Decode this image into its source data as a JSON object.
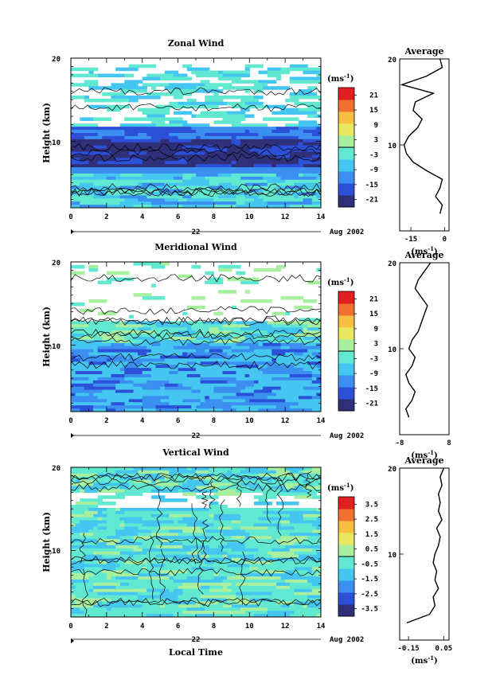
{
  "chart_data": [
    {
      "type": "heatmap",
      "title": "Zonal Wind",
      "xlabel": "",
      "ylabel": "Height (km)",
      "xlim": [
        0,
        14
      ],
      "ylim": [
        2,
        20
      ],
      "xticks": [
        "0",
        "2",
        "4",
        "6",
        "8",
        "10",
        "12",
        "14"
      ],
      "yticks": [
        "10",
        "20"
      ],
      "date_label": "22",
      "month_label": "Aug 2002",
      "colorbar": {
        "unit": "(ms",
        "unit_exp": "-1",
        "unit_close": ")",
        "ticks": [
          "21",
          "15",
          "9",
          "3",
          "-3",
          "-9",
          "-15",
          "-21"
        ],
        "range": [
          -24,
          24
        ]
      },
      "profile": {
        "title": "Average",
        "xlabel": "(ms",
        "xlabel_exp": "-1",
        "xlabel_close": ")",
        "xticks": [
          "-15",
          "0"
        ],
        "yticks": [
          "10",
          "20"
        ],
        "xlim": [
          -20,
          2
        ],
        "heights": [
          2,
          3,
          4,
          5,
          6,
          7,
          8,
          9,
          10,
          11,
          12,
          13,
          14,
          15,
          16,
          17,
          18,
          19,
          20
        ],
        "values": [
          -2,
          -1,
          -4,
          -2,
          -1,
          -8,
          -14,
          -17,
          -18,
          -16,
          -12,
          -10,
          -14,
          -13,
          -5,
          -19,
          -8,
          -1,
          -2
        ]
      }
    },
    {
      "type": "heatmap",
      "title": "Meridional Wind",
      "xlabel": "",
      "ylabel": "Height (km)",
      "xlim": [
        0,
        14
      ],
      "ylim": [
        2,
        20
      ],
      "xticks": [
        "0",
        "2",
        "4",
        "6",
        "8",
        "10",
        "12",
        "14"
      ],
      "yticks": [
        "10",
        "20"
      ],
      "date_label": "22",
      "month_label": "Aug 2002",
      "colorbar": {
        "unit": "(ms",
        "unit_exp": "-1",
        "unit_close": ")",
        "ticks": [
          "21",
          "15",
          "9",
          "3",
          "-3",
          "-9",
          "-15",
          "-21"
        ],
        "range": [
          -24,
          24
        ]
      },
      "profile": {
        "title": "Average",
        "xlabel": "(ms",
        "xlabel_exp": "-1",
        "xlabel_close": ")",
        "xticks": [
          "-8",
          "8"
        ],
        "yticks": [
          "10",
          "20"
        ],
        "xlim": [
          -8,
          8
        ],
        "heights": [
          2,
          3,
          4,
          5,
          6,
          7,
          8,
          9,
          10,
          11,
          12,
          13,
          14,
          15,
          16,
          17,
          18,
          19,
          20
        ],
        "values": [
          -5,
          -6,
          -4,
          -3,
          -5,
          -6,
          -4,
          -3,
          -5,
          -4,
          -2,
          -1,
          0,
          1,
          -1,
          -3,
          -2,
          0,
          2
        ]
      }
    },
    {
      "type": "heatmap",
      "title": "Vertical Wind",
      "xlabel": "Local Time",
      "ylabel": "Height (km)",
      "xlim": [
        0,
        14
      ],
      "ylim": [
        2,
        20
      ],
      "xticks": [
        "0",
        "2",
        "4",
        "6",
        "8",
        "10",
        "12",
        "14"
      ],
      "yticks": [
        "10",
        "20"
      ],
      "date_label": "22",
      "month_label": "Aug 2002",
      "colorbar": {
        "unit": "(ms",
        "unit_exp": "-1",
        "unit_close": ")",
        "ticks": [
          "3.5",
          "2.5",
          "1.5",
          "0.5",
          "-0.5",
          "-1.5",
          "-2.5",
          "-3.5"
        ],
        "range": [
          -4,
          4
        ]
      },
      "profile": {
        "title": "Average",
        "xlabel": "(ms",
        "xlabel_exp": "-1",
        "xlabel_close": ")",
        "xticks": [
          "-0.15",
          "0.05"
        ],
        "yticks": [
          "10",
          "20"
        ],
        "xlim": [
          -0.2,
          0.08
        ],
        "heights": [
          2,
          3,
          4,
          5,
          6,
          7,
          8,
          9,
          10,
          11,
          12,
          13,
          14,
          15,
          16,
          17,
          18,
          19,
          20
        ],
        "values": [
          -0.16,
          -0.03,
          0.0,
          -0.01,
          0.02,
          0.0,
          0.01,
          -0.01,
          0.0,
          0.02,
          0.03,
          0.01,
          0.04,
          0.02,
          0.03,
          0.02,
          0.04,
          0.03,
          0.05
        ]
      }
    }
  ],
  "colors": {
    "colorbar": [
      "#30307a",
      "#2c50d8",
      "#3a8ff0",
      "#44c6f0",
      "#60e8d0",
      "#a8f0a0",
      "#e8e860",
      "#f8c040",
      "#f07030",
      "#e02020"
    ]
  }
}
